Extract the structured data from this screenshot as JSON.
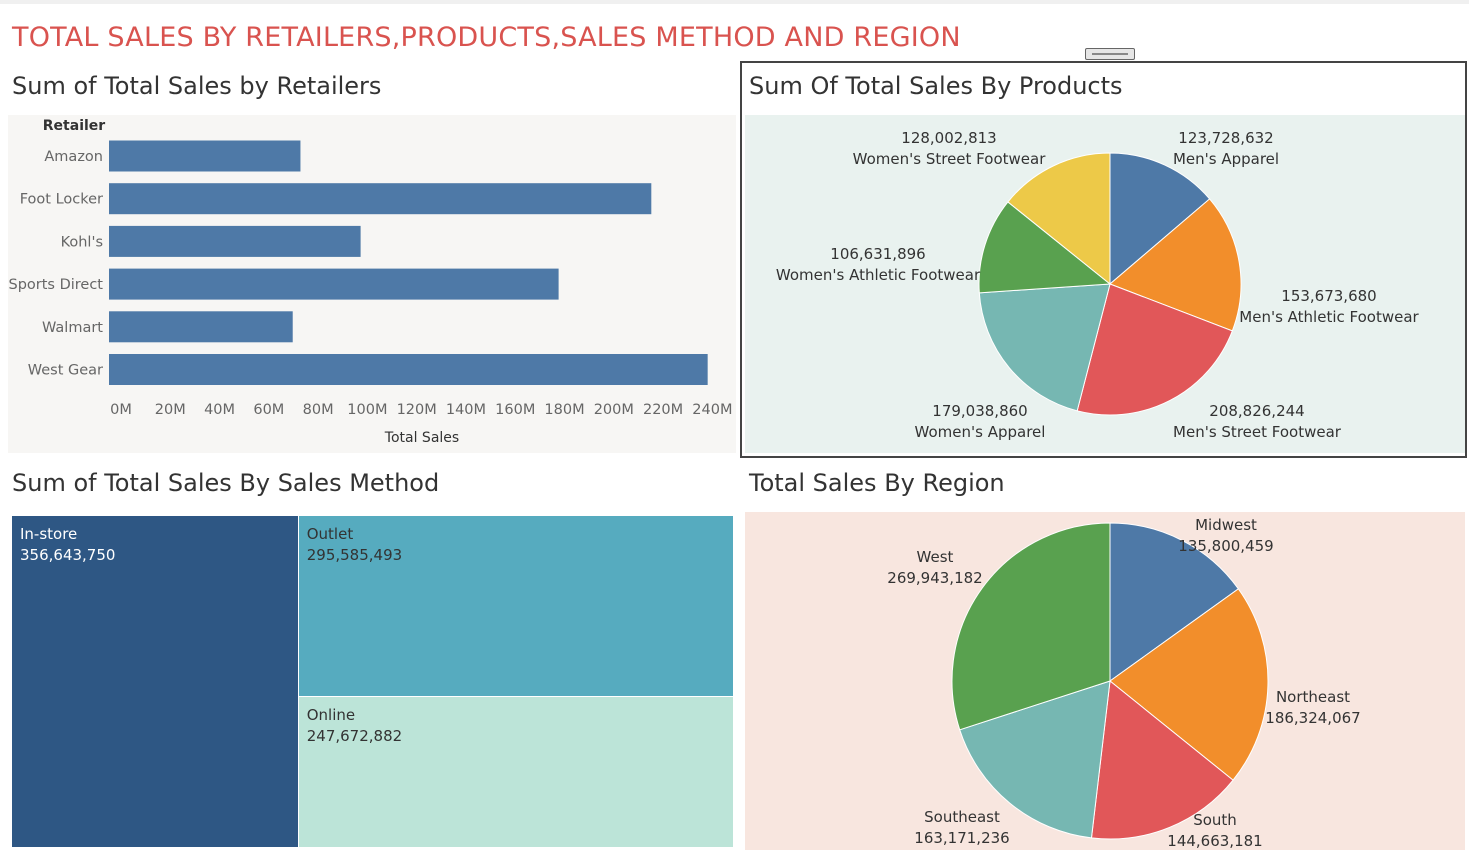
{
  "dashboard_title": "TOTAL SALES BY RETAILERS,PRODUCTS,SALES METHOD AND REGION",
  "colors": {
    "title": "#d9534f",
    "bar": "#4e79a7",
    "blue": "#4e79a7",
    "orange": "#f28e2b",
    "red": "#e15759",
    "teal": "#76b7b2",
    "green": "#59a14f",
    "yellow": "#edc948",
    "instore": "#2e5784",
    "outlet": "#56abbf",
    "online": "#bce4d8"
  },
  "panels": {
    "retailers": {
      "title": "Sum of Total Sales by Retailers"
    },
    "products": {
      "title": "Sum Of Total Sales By Products"
    },
    "sales_method": {
      "title": "Sum of Total Sales By Sales Method"
    },
    "region": {
      "title": "Total Sales By Region"
    }
  },
  "chart_data": [
    {
      "type": "bar",
      "orientation": "horizontal",
      "title": "Sum of Total Sales by Retailers",
      "category_header": "Retailer",
      "xlabel": "Total Sales",
      "categories": [
        "Amazon",
        "Foot Locker",
        "Kohl's",
        "Sports Direct",
        "Walmart",
        "West Gear"
      ],
      "values": [
        77698912,
        220094720,
        102114753,
        182470997,
        74558410,
        242964333
      ],
      "xlim": [
        0,
        250000000
      ],
      "ticks": [
        0,
        20000000,
        40000000,
        60000000,
        80000000,
        100000000,
        120000000,
        140000000,
        160000000,
        180000000,
        200000000,
        220000000,
        240000000
      ],
      "tick_labels": [
        "0M",
        "20M",
        "40M",
        "60M",
        "80M",
        "100M",
        "120M",
        "140M",
        "160M",
        "180M",
        "200M",
        "220M",
        "240M"
      ]
    },
    {
      "type": "pie",
      "title": "Sum Of Total Sales By Products",
      "slices": [
        {
          "label": "Men's Apparel",
          "value": 123728632,
          "value_label": "123,728,632",
          "color": "#4e79a7"
        },
        {
          "label": "Men's Athletic Footwear",
          "value": 153673680,
          "value_label": "153,673,680",
          "color": "#f28e2b"
        },
        {
          "label": "Men's Street Footwear",
          "value": 208826244,
          "value_label": "208,826,244",
          "color": "#e15759"
        },
        {
          "label": "Women's Apparel",
          "value": 179038860,
          "value_label": "179,038,860",
          "color": "#76b7b2"
        },
        {
          "label": "Women's Athletic Footwear",
          "value": 106631896,
          "value_label": "106,631,896",
          "color": "#59a14f"
        },
        {
          "label": "Women's Street Footwear",
          "value": 128002813,
          "value_label": "128,002,813",
          "color": "#edc948"
        }
      ]
    },
    {
      "type": "treemap",
      "title": "Sum of Total Sales By Sales Method",
      "items": [
        {
          "label": "In-store",
          "value": 356643750,
          "value_label": "356,643,750",
          "color": "#2e5784"
        },
        {
          "label": "Outlet",
          "value": 295585493,
          "value_label": "295,585,493",
          "color": "#56abbf"
        },
        {
          "label": "Online",
          "value": 247672882,
          "value_label": "247,672,882",
          "color": "#bce4d8"
        }
      ]
    },
    {
      "type": "pie",
      "title": "Total Sales By Region",
      "slices": [
        {
          "label": "Midwest",
          "value": 135800459,
          "value_label": "135,800,459",
          "color": "#4e79a7"
        },
        {
          "label": "Northeast",
          "value": 186324067,
          "value_label": "186,324,067",
          "color": "#f28e2b"
        },
        {
          "label": "South",
          "value": 144663181,
          "value_label": "144,663,181",
          "color": "#e15759"
        },
        {
          "label": "Southeast",
          "value": 163171236,
          "value_label": "163,171,236",
          "color": "#76b7b2"
        },
        {
          "label": "West",
          "value": 269943182,
          "value_label": "269,943,182",
          "color": "#59a14f"
        }
      ]
    }
  ]
}
